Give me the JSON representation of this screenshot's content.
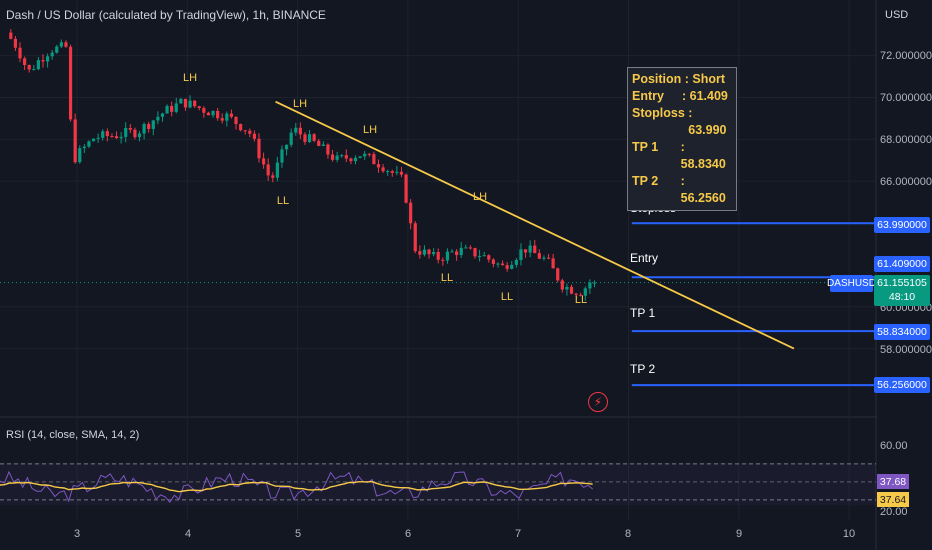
{
  "header": {
    "title": "Dash / US Dollar (calculated by TradingView), 1h, BINANCE",
    "currency": "USD"
  },
  "price_axis": {
    "labels": [
      "72.000000",
      "70.000000",
      "68.000000",
      "66.000000",
      "60.000000",
      "58.000000"
    ]
  },
  "level_tags": {
    "stoploss": "63.990000",
    "entry": "61.409000",
    "tp1": "58.834000",
    "tp2": "56.256000"
  },
  "symbol_tag": "DASHUSD",
  "last_price": {
    "value": "61.155105",
    "countdown": "48:10"
  },
  "levels": {
    "stoploss_label": "Stoploss",
    "entry_label": "Entry",
    "tp1_label": "TP 1",
    "tp2_label": "TP 2"
  },
  "position_box": {
    "rows": [
      {
        "k": "Position",
        "v": ": Short"
      },
      {
        "k": "Entry",
        "v": ":  61.409"
      },
      {
        "k": "Stoploss",
        "v": ": 63.990"
      },
      {
        "k": "TP 1",
        "v": ":  58.8340"
      },
      {
        "k": "TP 2",
        "v": ":  56.2560"
      }
    ]
  },
  "swings": {
    "lh1": "LH",
    "lh2": "LH",
    "lh3": "LH",
    "lh4": "LH",
    "ll1": "LL",
    "ll2": "LL",
    "ll3": "LL",
    "ll4": "LL"
  },
  "rsi": {
    "title": "RSI (14, close, SMA, 14, 2)",
    "axis_labels": [
      "60.00",
      "20.00"
    ],
    "value": "37.68",
    "sma": "37.64"
  },
  "x_axis": {
    "labels": [
      "3",
      "4",
      "5",
      "6",
      "7",
      "8",
      "9",
      "10"
    ]
  },
  "colors": {
    "background": "#131722",
    "up": "#089981",
    "down": "#f23645",
    "trendline": "#f7c948",
    "level_line": "#2962ff",
    "rsi_line": "#7e57c2",
    "rsi_sma": "#f7c948"
  },
  "chart_data": {
    "type": "line",
    "title": "Dash / US Dollar (calculated by TradingView), 1h, BINANCE",
    "xlabel": "",
    "ylabel": "USD",
    "x_ticks": [
      "3",
      "4",
      "5",
      "6",
      "7",
      "8",
      "9",
      "10"
    ],
    "ylim": [
      55.4,
      73.3
    ],
    "series": [
      {
        "name": "DASHUSD",
        "values": [
          [
            2.4,
            73.1
          ],
          [
            2.5,
            72.4
          ],
          [
            2.6,
            71.2
          ],
          [
            2.7,
            71.8
          ],
          [
            2.8,
            72.3
          ],
          [
            2.95,
            72.4
          ],
          [
            3.0,
            67.0
          ],
          [
            3.2,
            68.1
          ],
          [
            3.4,
            68.2
          ],
          [
            3.6,
            68.4
          ],
          [
            3.8,
            69.2
          ],
          [
            4.0,
            69.8
          ],
          [
            4.2,
            69.4
          ],
          [
            4.4,
            69.1
          ],
          [
            4.6,
            68.4
          ],
          [
            4.8,
            66.0
          ],
          [
            5.0,
            68.5
          ],
          [
            5.2,
            67.8
          ],
          [
            5.4,
            67.0
          ],
          [
            5.6,
            67.3
          ],
          [
            5.8,
            66.8
          ],
          [
            6.0,
            66.0
          ],
          [
            6.1,
            62.8
          ],
          [
            6.3,
            62.3
          ],
          [
            6.5,
            62.7
          ],
          [
            6.7,
            62.5
          ],
          [
            6.9,
            61.9
          ],
          [
            7.1,
            62.8
          ],
          [
            7.3,
            62.2
          ],
          [
            7.45,
            61.0
          ],
          [
            7.6,
            60.7
          ],
          [
            7.7,
            61.15
          ]
        ]
      }
    ],
    "trendline": {
      "from": [
        4.8,
        69.8
      ],
      "to": [
        9.5,
        58.0
      ]
    },
    "levels": {
      "stoploss": 63.99,
      "entry": 61.409,
      "tp1": 58.834,
      "tp2": 56.256
    },
    "rsi": {
      "ylim": [
        20,
        80
      ],
      "bands": [
        30,
        50,
        70
      ],
      "last": 37.68,
      "sma_last": 37.64
    },
    "grid": true
  }
}
